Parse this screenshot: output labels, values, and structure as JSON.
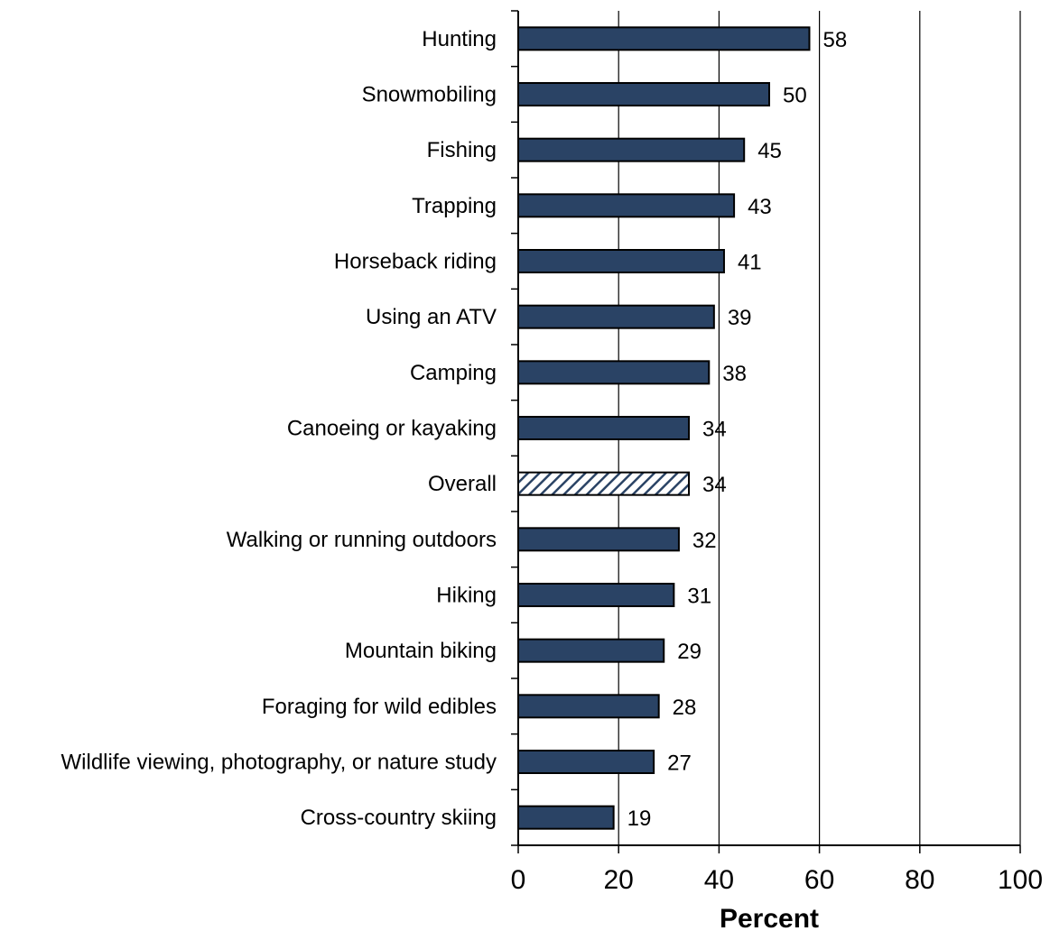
{
  "chart_data": {
    "type": "bar",
    "orientation": "horizontal",
    "categories": [
      "Hunting",
      "Snowmobiling",
      "Fishing",
      "Trapping",
      "Horseback riding",
      "Using an ATV",
      "Camping",
      "Canoeing or kayaking",
      "Overall",
      "Walking or running outdoors",
      "Hiking",
      "Mountain biking",
      "Foraging for wild edibles",
      "Wildlife viewing, photography, or nature study",
      "Cross-country skiing"
    ],
    "values": [
      58,
      50,
      45,
      43,
      41,
      39,
      38,
      34,
      34,
      32,
      31,
      29,
      28,
      27,
      19
    ],
    "value_labels": [
      "58",
      "50",
      "45",
      "43",
      "41",
      "39",
      "38",
      "34",
      "34",
      "32",
      "31",
      "29",
      "28",
      "27",
      "19"
    ],
    "highlighted_category": "Overall",
    "title": "",
    "xlabel": "Percent",
    "ylabel": "",
    "xlim": [
      0,
      100
    ],
    "xticks": [
      0,
      20,
      40,
      60,
      80,
      100
    ],
    "xtick_labels": [
      "0",
      "20",
      "40",
      "60",
      "80",
      "100"
    ],
    "grid": "vertical lines at major x ticks",
    "legend": "none",
    "colors": {
      "bar_fill": "#2a4365",
      "bar_stroke": "#000000",
      "highlight_pattern": "diagonal hatch, navy on white",
      "gridline": "#000000"
    }
  }
}
